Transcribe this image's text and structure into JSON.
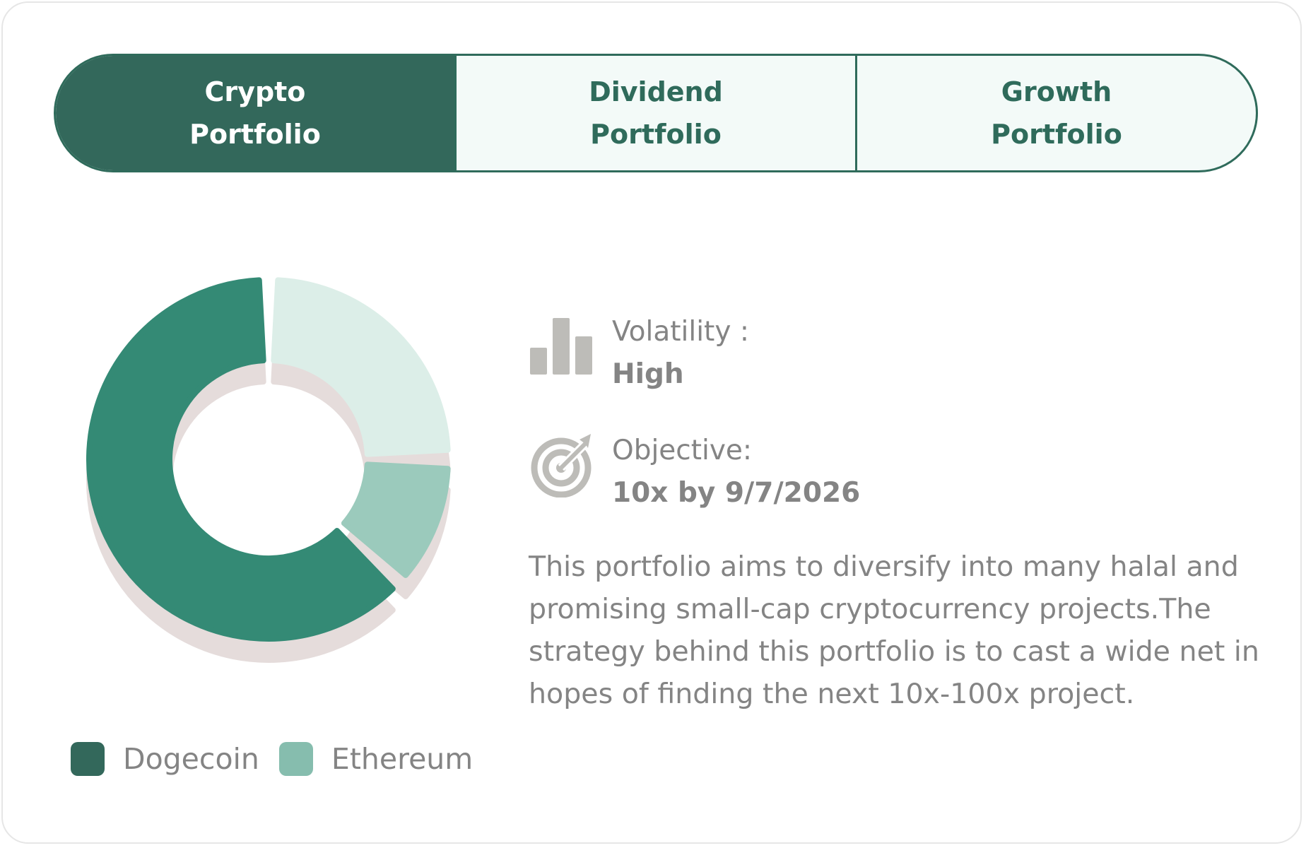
{
  "tabs": [
    {
      "label": "Crypto\nPortfolio",
      "active": true
    },
    {
      "label": "Dividend\nPortfolio",
      "active": false
    },
    {
      "label": "Growth\nPortfolio",
      "active": false
    }
  ],
  "chart_data": {
    "type": "pie",
    "style": "donut",
    "slices": [
      {
        "name": "Dogecoin",
        "value": 63,
        "color": "#348a75"
      },
      {
        "name": "Ethereum (light)",
        "value": 25,
        "color": "#dceee8"
      },
      {
        "name": "Ethereum",
        "value": 12,
        "color": "#9bcabc"
      }
    ],
    "legend": [
      "Dogecoin",
      "Ethereum"
    ],
    "legend_colors": [
      "#33685b",
      "#86bdae"
    ],
    "shadow_color": "#e5dcdb"
  },
  "info": {
    "volatility": {
      "label": "Volatility :",
      "value": "High",
      "icon": "bar-chart-icon"
    },
    "objective": {
      "label": "Objective:",
      "value": "10x by 9/7/2026",
      "icon": "target-icon"
    }
  },
  "description": "This portfolio aims to diversify into many halal and promising small-cap cryptocurrency projects.The strategy behind this portfolio is to cast a wide net in hopes of finding the next 10x-100x project.",
  "colors": {
    "accent": "#33685b",
    "text": "#848484",
    "icon": "#bdbcb8"
  }
}
